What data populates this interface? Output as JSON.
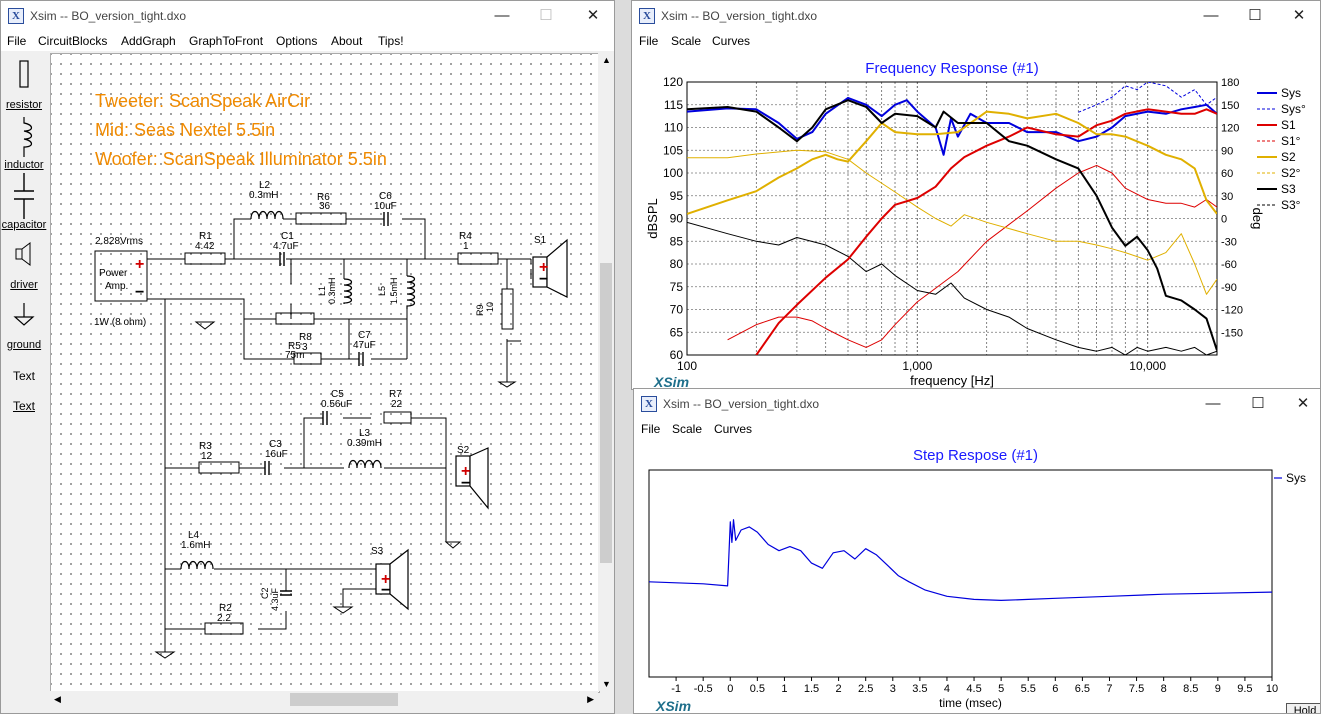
{
  "colors": {
    "accent": "#1010e0",
    "sys": "#0000dd",
    "s1": "#dd0000",
    "s2": "#e0b000",
    "s3": "#000000",
    "annot": "#f08a00",
    "title_blue": "#1a1aff"
  },
  "circuit_window": {
    "title": "Xsim -- BO_version_tight.dxo",
    "controls": {
      "minimize": "—",
      "maximize": "☐",
      "close": "✕"
    },
    "menu": [
      "File",
      "CircuitBlocks",
      "AddGraph",
      "GraphToFront",
      "Options",
      "About",
      "Tips!"
    ],
    "tools": [
      {
        "label": "resistor",
        "icon": "resistor-icon"
      },
      {
        "label": "inductor",
        "icon": "inductor-icon"
      },
      {
        "label": "capacitor",
        "icon": "capacitor-icon"
      },
      {
        "label": "driver",
        "icon": "speaker-icon"
      },
      {
        "label": "ground",
        "icon": "ground-icon"
      },
      {
        "label": "Text",
        "icon": "text-tool"
      },
      {
        "label": "Text",
        "icon": "text-link"
      }
    ],
    "annotations": [
      "Tweeter: ScanSpeak AirCir",
      "Mid: Seas Nextel 5.5in",
      "Woofer: ScanSpeak Illuminator 5.5in"
    ],
    "amp": {
      "voltage": "2.828Vrms",
      "label1": "Power",
      "label2": "Amp.",
      "rating": "1W (8 ohm)"
    },
    "components": {
      "R1": {
        "name": "R1",
        "value": "4.42"
      },
      "L2": {
        "name": "L2",
        "value": "0.3mH"
      },
      "R6": {
        "name": "R6",
        "value": "36"
      },
      "C6": {
        "name": "C6",
        "value": "10uF"
      },
      "C1": {
        "name": "C1",
        "value": "4.7uF"
      },
      "R4": {
        "name": "R4",
        "value": "1"
      },
      "L1": {
        "name": "L1",
        "value": "0.3mH"
      },
      "L5": {
        "name": "L5",
        "value": "1.5mH"
      },
      "R9": {
        "name": "R9",
        "value": "10"
      },
      "R5": {
        "name": "R5",
        "value": "75m"
      },
      "R8": {
        "name": "R8",
        "value": "3"
      },
      "C7": {
        "name": "C7",
        "value": "47uF"
      },
      "C5": {
        "name": "C5",
        "value": "0.56uF"
      },
      "R7": {
        "name": "R7",
        "value": "22"
      },
      "R3": {
        "name": "R3",
        "value": "12"
      },
      "C3": {
        "name": "C3",
        "value": "16uF"
      },
      "L3": {
        "name": "L3",
        "value": "0.39mH"
      },
      "L4": {
        "name": "L4",
        "value": "1.6mH"
      },
      "C2": {
        "name": "C2",
        "value": "4.3uF"
      },
      "R2": {
        "name": "R2",
        "value": "2.2"
      }
    },
    "speakers": [
      "S1",
      "S2",
      "S3"
    ]
  },
  "freq_window": {
    "title": "Xsim -- BO_version_tight.dxo",
    "controls": {
      "minimize": "—",
      "maximize": "☐",
      "close": "✕"
    },
    "menu": [
      "File",
      "Scale",
      "Curves"
    ],
    "plot_title": "Frequency Response (#1)",
    "brand": "XSim"
  },
  "step_window": {
    "title": "Xsim -- BO_version_tight.dxo",
    "controls": {
      "minimize": "—",
      "maximize": "☐",
      "close": "✕"
    },
    "menu": [
      "File",
      "Scale",
      "Curves"
    ],
    "plot_title": "Step Respose (#1)",
    "brand": "XSim",
    "hold_button": "Hold"
  },
  "chart_data": [
    {
      "type": "line",
      "title": "Frequency Response (#1)",
      "xlabel": "frequency [Hz]",
      "ylabel": "dBSPL",
      "y2label": "deg",
      "xscale": "log",
      "xlim": [
        100,
        20000
      ],
      "ylim": [
        60,
        120
      ],
      "y2lim": [
        -180,
        180
      ],
      "x_ticks": [
        "100",
        "1,000",
        "10,000"
      ],
      "y_ticks": [
        60,
        65,
        70,
        75,
        80,
        85,
        90,
        95,
        100,
        105,
        110,
        115,
        120
      ],
      "y2_ticks": [
        -150,
        -120,
        -90,
        -60,
        -30,
        0,
        30,
        60,
        90,
        120,
        150,
        180
      ],
      "grid": true,
      "legend_position": "right",
      "series": [
        {
          "name": "Sys",
          "axis": "left",
          "color": "#0000dd",
          "width": 2,
          "dash": false,
          "x": [
            100,
            150,
            200,
            250,
            300,
            350,
            400,
            500,
            600,
            700,
            800,
            900,
            1000,
            1200,
            1300,
            1400,
            1500,
            1700,
            2000,
            2500,
            3000,
            4000,
            5000,
            6000,
            7000,
            8000,
            10000,
            12000,
            14000,
            16000,
            18000,
            20000
          ],
          "y": [
            113.5,
            114.2,
            114,
            111,
            107.5,
            109,
            113,
            116.5,
            115,
            112.5,
            115,
            116,
            113.5,
            110,
            104,
            112,
            108,
            113,
            111,
            111,
            109,
            109,
            107,
            108,
            110,
            112.5,
            113.5,
            113,
            114,
            114.5,
            115,
            113
          ]
        },
        {
          "name": "Sys°",
          "axis": "right",
          "color": "#0000dd",
          "width": 1,
          "dash": true,
          "x": [
            5000,
            6000,
            7000,
            8000,
            9000,
            10000,
            12000,
            14000,
            16000,
            18000,
            20000
          ],
          "y": [
            140,
            150,
            160,
            175,
            170,
            180,
            175,
            160,
            170,
            150,
            160
          ]
        },
        {
          "name": "S1",
          "axis": "left",
          "color": "#dd0000",
          "width": 2,
          "dash": false,
          "x": [
            200,
            250,
            300,
            400,
            500,
            600,
            700,
            800,
            1000,
            1200,
            1400,
            1600,
            2000,
            2500,
            3000,
            4000,
            5000,
            6000,
            7000,
            8000,
            10000,
            12000,
            14000,
            16000,
            18000,
            20000
          ],
          "y": [
            60,
            67,
            71,
            77,
            81,
            86,
            90,
            93,
            94.5,
            97,
            101,
            103.5,
            106,
            108,
            110,
            108.5,
            108,
            110.5,
            111.5,
            113,
            114,
            113.5,
            113,
            113,
            114,
            113
          ]
        },
        {
          "name": "S1°",
          "axis": "right",
          "color": "#dd0000",
          "width": 1,
          "dash": false,
          "x": [
            150,
            200,
            250,
            300,
            350,
            400,
            500,
            600,
            700,
            800,
            1000,
            1500,
            2000,
            3000,
            4000,
            5000,
            6000,
            7000,
            8000,
            10000,
            12000,
            14000,
            16000,
            18000,
            20000
          ],
          "y": [
            -160,
            -140,
            -130,
            -130,
            -135,
            -145,
            -160,
            -170,
            -160,
            -140,
            -110,
            -70,
            -30,
            10,
            40,
            60,
            70,
            60,
            40,
            25,
            20,
            20,
            15,
            25,
            15
          ]
        },
        {
          "name": "S2",
          "axis": "left",
          "color": "#e0b000",
          "width": 2,
          "dash": false,
          "x": [
            100,
            150,
            200,
            250,
            300,
            350,
            400,
            450,
            500,
            600,
            700,
            800,
            1000,
            1200,
            1500,
            2000,
            2500,
            3000,
            4000,
            5000,
            6000,
            7000,
            8000,
            10000,
            12000,
            14000,
            16000,
            18000,
            20000
          ],
          "y": [
            91,
            94,
            96,
            99,
            101,
            103,
            104,
            103,
            102.5,
            107,
            111,
            109,
            108.5,
            108.5,
            109,
            113.5,
            113,
            112,
            113,
            111,
            108.5,
            108.5,
            108,
            106,
            104,
            103,
            101,
            94,
            91
          ]
        },
        {
          "name": "S2°",
          "axis": "right",
          "color": "#e0b000",
          "width": 1,
          "dash": false,
          "x": [
            100,
            150,
            200,
            300,
            400,
            500,
            600,
            800,
            1000,
            1200,
            1400,
            1600,
            2000,
            3000,
            4000,
            5000,
            6000,
            7000,
            8000,
            10000,
            12000,
            14000,
            16000,
            18000,
            20000
          ],
          "y": [
            80,
            80,
            85,
            90,
            88,
            78,
            60,
            35,
            15,
            0,
            -10,
            5,
            -5,
            -20,
            -30,
            -30,
            -35,
            -40,
            -45,
            -55,
            -45,
            -20,
            -60,
            -100,
            -80
          ]
        },
        {
          "name": "S3",
          "axis": "left",
          "color": "#000000",
          "width": 2,
          "dash": false,
          "x": [
            100,
            150,
            200,
            250,
            300,
            350,
            400,
            500,
            600,
            700,
            800,
            1000,
            1200,
            1300,
            1500,
            2000,
            2500,
            3000,
            4000,
            5000,
            6000,
            7000,
            8000,
            9000,
            10000,
            11000,
            12000,
            14000,
            16000,
            18000,
            20000
          ],
          "y": [
            114,
            114.5,
            113.5,
            110,
            107,
            110,
            114,
            116,
            114.5,
            111,
            113,
            112.5,
            110,
            113.5,
            111,
            111,
            107,
            106,
            103,
            101,
            95,
            88,
            84,
            86,
            83,
            79,
            73,
            72,
            70,
            68,
            61
          ]
        },
        {
          "name": "S3°",
          "axis": "right",
          "color": "#000000",
          "width": 1,
          "dash": false,
          "x": [
            100,
            150,
            200,
            250,
            300,
            400,
            500,
            600,
            700,
            800,
            1000,
            1200,
            1400,
            1600,
            2000,
            2500,
            3000,
            4000,
            5000,
            6000,
            7000,
            8000,
            9000,
            10000,
            12000,
            14000,
            16000,
            18000,
            20000
          ],
          "y": [
            -5,
            -20,
            -30,
            -35,
            -25,
            -35,
            -50,
            -70,
            -60,
            -75,
            -95,
            -100,
            -85,
            -105,
            -120,
            -130,
            -145,
            -160,
            -170,
            -175,
            -170,
            -180,
            -170,
            -175,
            -170,
            -175,
            -170,
            -180,
            -175
          ]
        }
      ]
    },
    {
      "type": "line",
      "title": "Step Respose (#1)",
      "xlabel": "time (msec)",
      "xlim": [
        -1.5,
        10
      ],
      "x_ticks": [
        -1,
        -0.5,
        0,
        0.5,
        1,
        1.5,
        2,
        2.5,
        3,
        3.5,
        4,
        4.5,
        5,
        5.5,
        6,
        6.5,
        7,
        7.5,
        8,
        8.5,
        9,
        9.5,
        10
      ],
      "ylim": [
        -1,
        1
      ],
      "legend_position": "right",
      "series": [
        {
          "name": "Sys",
          "color": "#0000dd",
          "x": [
            -1.5,
            -0.5,
            -0.05,
            0.0,
            0.03,
            0.06,
            0.1,
            0.2,
            0.35,
            0.5,
            0.7,
            0.9,
            1.1,
            1.3,
            1.5,
            1.7,
            1.9,
            2.1,
            2.3,
            2.5,
            2.7,
            2.9,
            3.1,
            3.3,
            3.6,
            4.0,
            4.5,
            5.0,
            5.5,
            6.0,
            7.0,
            8.0,
            9.0,
            10.0
          ],
          "y": [
            -0.08,
            -0.1,
            -0.12,
            0.5,
            0.3,
            0.52,
            0.32,
            0.42,
            0.45,
            0.4,
            0.28,
            0.22,
            0.26,
            0.22,
            0.1,
            0.05,
            0.2,
            0.22,
            0.14,
            0.24,
            0.18,
            0.08,
            -0.02,
            -0.08,
            -0.16,
            -0.22,
            -0.25,
            -0.26,
            -0.25,
            -0.24,
            -0.22,
            -0.2,
            -0.19,
            -0.18
          ]
        }
      ]
    }
  ]
}
